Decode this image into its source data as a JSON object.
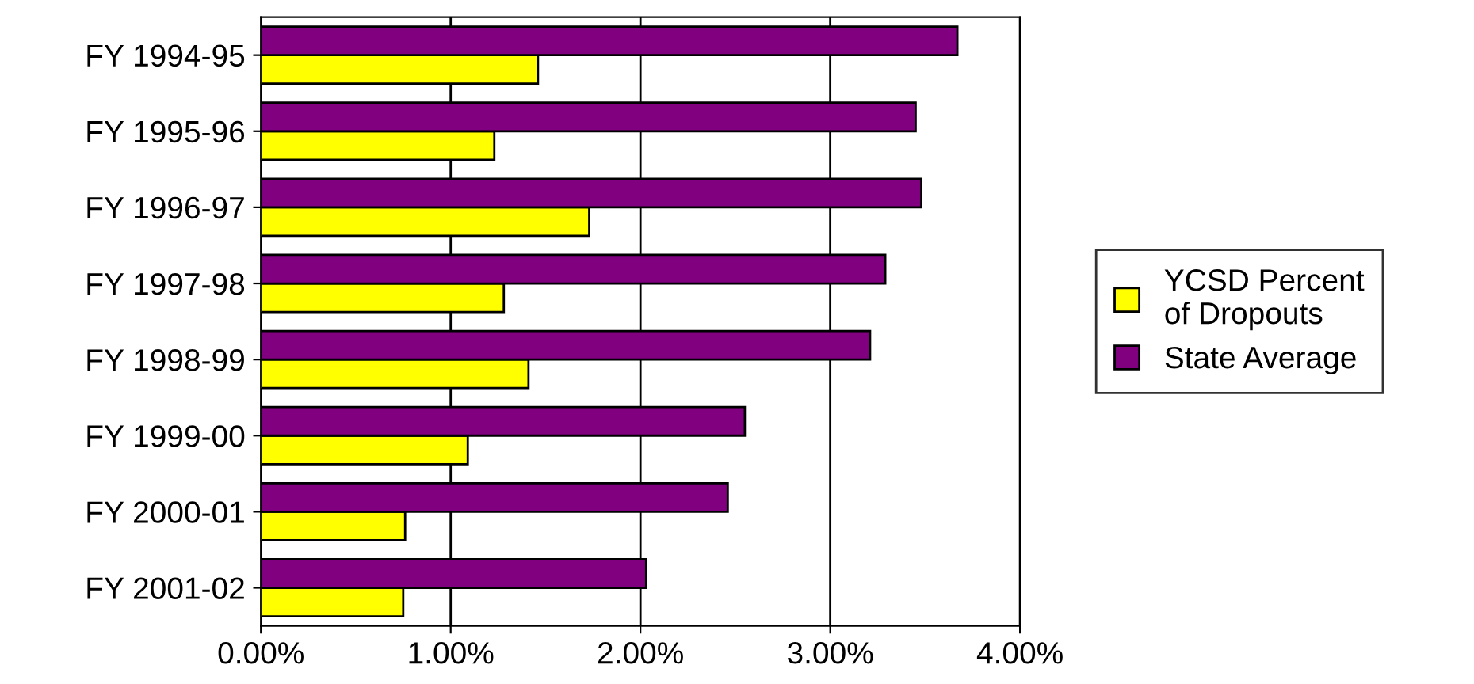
{
  "chart_data": {
    "type": "bar",
    "orientation": "horizontal",
    "categories": [
      "FY 1994-95",
      "FY 1995-96",
      "FY 1996-97",
      "FY 1997-98",
      "FY 1998-99",
      "FY 1999-00",
      "FY 2000-01",
      "FY 2001-02"
    ],
    "series": [
      {
        "name": "YCSD Percent\nof Dropouts",
        "color": "#ffff00",
        "values": [
          1.46,
          1.23,
          1.73,
          1.28,
          1.41,
          1.09,
          0.76,
          0.75
        ]
      },
      {
        "name": "State Average",
        "color": "#800080",
        "values": [
          3.67,
          3.45,
          3.48,
          3.29,
          3.21,
          2.55,
          2.46,
          2.03
        ]
      }
    ],
    "xlim": [
      0,
      4
    ],
    "xticks": [
      {
        "value": 0,
        "label": "0.00%"
      },
      {
        "value": 1,
        "label": "1.00%"
      },
      {
        "value": 2,
        "label": "2.00%"
      },
      {
        "value": 3,
        "label": "3.00%"
      },
      {
        "value": 4,
        "label": "4.00%"
      }
    ],
    "grid": "x",
    "legend": "right"
  }
}
